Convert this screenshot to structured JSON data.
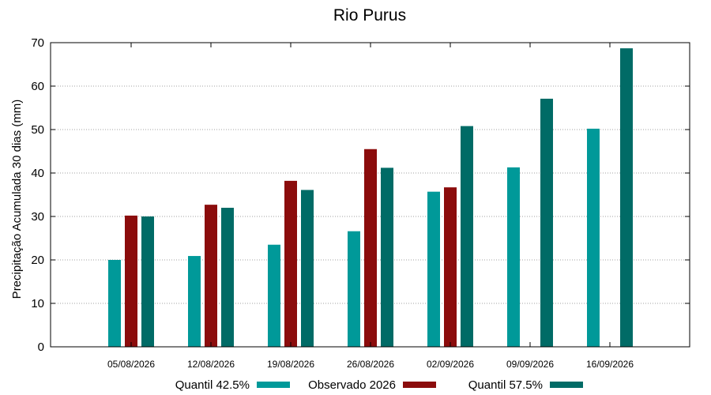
{
  "chart_data": {
    "type": "bar",
    "title": "Rio Purus",
    "xlabel": "",
    "ylabel": "Precipitação Acumulada 30 dias (mm)",
    "ylim": [
      0,
      70
    ],
    "yticks": [
      0,
      10,
      20,
      30,
      40,
      50,
      60,
      70
    ],
    "grid": true,
    "legend_position": "bottom",
    "categories": [
      "05/08/2026",
      "12/08/2026",
      "19/08/2026",
      "26/08/2026",
      "02/09/2026",
      "09/09/2026",
      "16/09/2026"
    ],
    "series": [
      {
        "name": "Quantil 42.5%",
        "color": "#009999",
        "values": [
          20.0,
          20.9,
          23.5,
          26.6,
          35.7,
          41.3,
          50.2
        ]
      },
      {
        "name": "Observado 2026",
        "color": "#8b0c0c",
        "values": [
          30.2,
          32.7,
          38.2,
          45.5,
          36.7,
          null,
          null
        ]
      },
      {
        "name": "Quantil 57.5%",
        "color": "#006b66",
        "values": [
          30.0,
          32.0,
          36.1,
          41.2,
          50.8,
          57.1,
          68.7
        ]
      }
    ]
  }
}
